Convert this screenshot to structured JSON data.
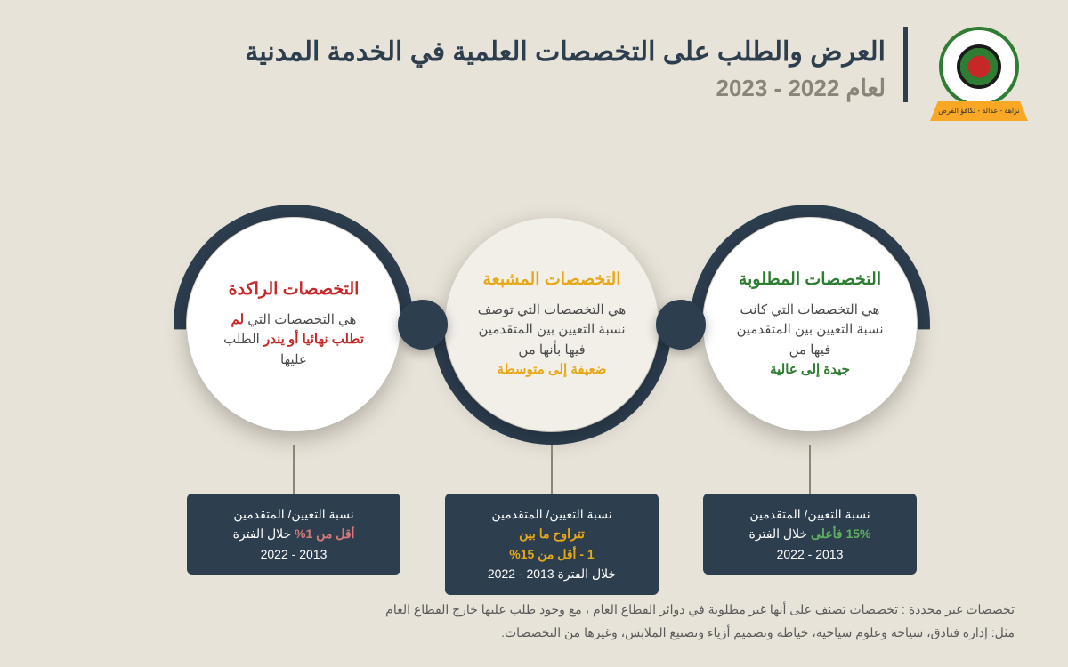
{
  "colors": {
    "background": "#e8e3d8",
    "dark": "#2d3e4f",
    "muted": "#8a8578",
    "green": "#2e7d32",
    "orange": "#e6a817",
    "red": "#c62828",
    "white": "#ffffff",
    "node_alt": "#f2efe8"
  },
  "header": {
    "title": "العرض والطلب على التخصصات العلمية في الخدمة المدنية",
    "subtitle": "لعام 2022 - 2023",
    "logo_banner": "نزاهة - عدالة - تكافؤ الفرص"
  },
  "nodes": [
    {
      "title": "التخصصات المطلوبة",
      "title_color": "#2e7d32",
      "desc_pre": "هي التخصصات التي كانت نسبة التعيين بين المتقدمين فيها من",
      "desc_hl": "جيدة إلى عالية",
      "hl_color": "#2e7d32"
    },
    {
      "title": "التخصصات المشبعة",
      "title_color": "#e6a817",
      "desc_pre": "هي التخصصات التي توصف نسبة التعيين بين المتقدمين فيها بأنها من",
      "desc_hl": "ضعيفة إلى متوسطة",
      "hl_color": "#e6a817"
    },
    {
      "title": "التخصصات الراكدة",
      "title_color": "#c62828",
      "desc_pre": "هي التخصصات التي",
      "desc_hl": "لم تطلب نهائيا أو يندر",
      "desc_post": "الطلب عليها",
      "hl_color": "#c62828"
    }
  ],
  "stats": [
    {
      "line1_pre": "نسبة التعيين/ المتقدمين",
      "line2_hl": "15% فأعلى",
      "line2_post": " خلال الفترة",
      "line3": "2013 - 2022",
      "hl_color": "#5fae62"
    },
    {
      "line1_pre": "نسبة التعيين/ المتقدمين",
      "line2_hl": "تتراوح ما بين",
      "line3_hl": "1 - أقل من 15%",
      "line4": "خلال الفترة 2013 - 2022",
      "hl_color": "#e6a817"
    },
    {
      "line1_pre": "نسبة التعيين/ المتقدمين",
      "line2_hl": "أقل من 1%",
      "line2_post": " خلال الفترة",
      "line3": "2013 - 2022",
      "hl_color": "#d87a7a"
    }
  ],
  "footer": {
    "line1": "تخصصات غير محددة : تخصصات تصنف على أنها غير مطلوبة في دوائر القطاع العام ، مع وجود طلب عليها خارج القطاع العام",
    "line2": "مثل: إدارة فنادق، سياحة وعلوم سياحية، خياطة وتصميم أزياء وتصنيع الملابس، وغيرها من التخصصات."
  }
}
